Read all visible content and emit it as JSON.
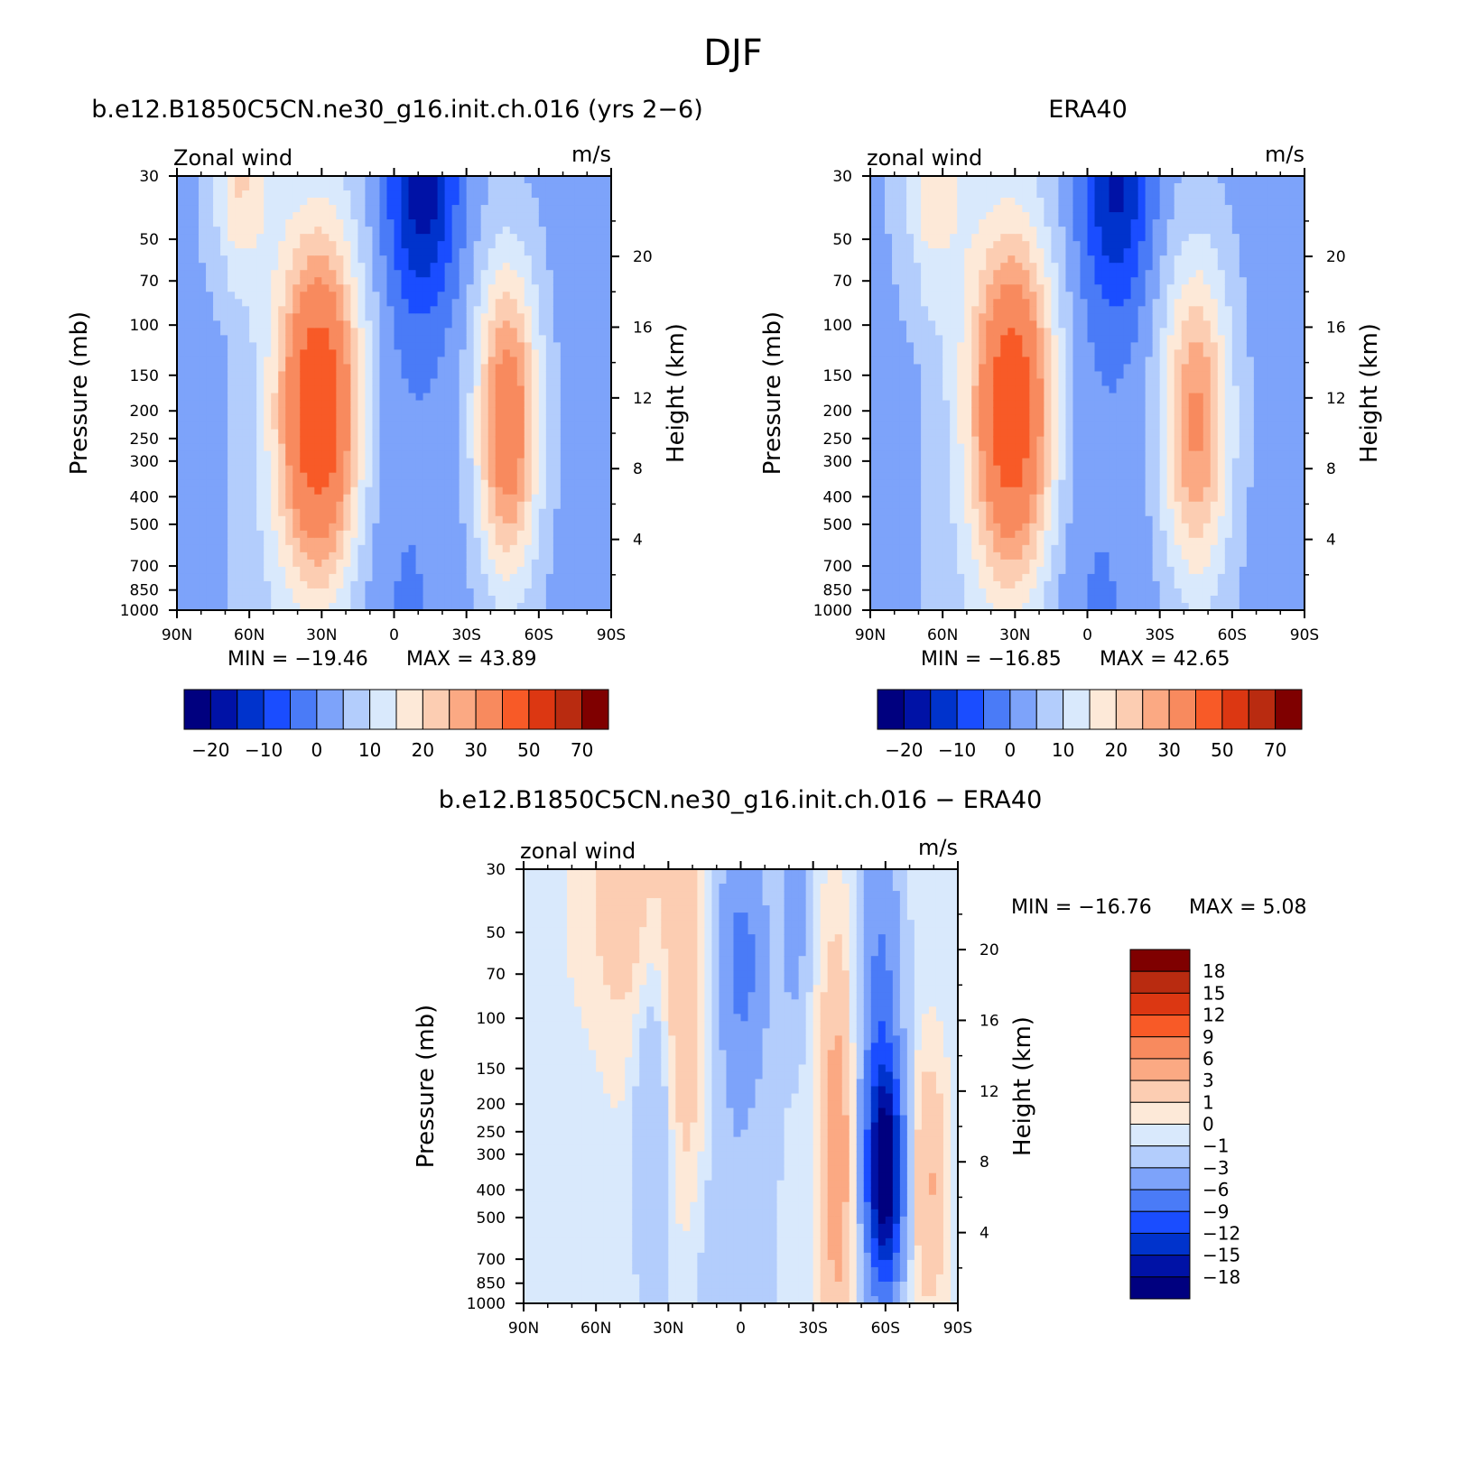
{
  "figure": {
    "title": "DJF"
  },
  "colors": {
    "diverging": [
      "#00007f",
      "#0012a6",
      "#0033cc",
      "#1a4dff",
      "#4a7bf7",
      "#7da3fa",
      "#b3cdfc",
      "#d9e9fc",
      "#fde9d8",
      "#fccdb2",
      "#fba983",
      "#f88a5e",
      "#f85a27",
      "#dc3712",
      "#b92b10",
      "#7f0000"
    ]
  },
  "chart_data": [
    {
      "type": "heatmap",
      "title": "b.e12.B1850C5CN.ne30_g16.init.ch.016 (yrs 2−6)",
      "left_label": "Zonal wind",
      "right_label": "m/s",
      "ylabel": "Pressure (mb)",
      "ylabel_right": "Height (km)",
      "x_ticks": [
        "90N",
        "60N",
        "30N",
        "0",
        "30S",
        "60S",
        "90S"
      ],
      "y_ticks": [
        "30",
        "50",
        "70",
        "100",
        "150",
        "200",
        "250",
        "300",
        "400",
        "500",
        "700",
        "850",
        "1000"
      ],
      "right_ticks": [
        "20",
        "16",
        "12",
        "8",
        "4"
      ],
      "min_label": "MIN = −19.46",
      "max_label": "MAX = 43.89",
      "min": -19.46,
      "max": 43.89,
      "colorbar_labels": [
        "−20",
        "−10",
        "0",
        "10",
        "20",
        "30",
        "50",
        "70"
      ],
      "levels": [
        -25,
        -20,
        -15,
        -10,
        -5,
        0,
        5,
        10,
        15,
        20,
        25,
        30,
        40,
        50,
        60,
        70
      ],
      "ylim": [
        1000,
        30
      ],
      "xlim": [
        90,
        -90
      ],
      "jets": [
        {
          "lat": 31,
          "p": 200,
          "peak": 43.89,
          "dlat": 12,
          "dlogp": 0.42
        },
        {
          "lat": -47,
          "p": 220,
          "peak": 34.0,
          "dlat": 9,
          "dlogp": 0.38
        },
        {
          "lat": 64,
          "p": 30,
          "peak": 14.0,
          "dlat": 9,
          "dlogp": 0.25
        }
      ],
      "easterly": {
        "lat": -12,
        "p": 30,
        "peak": -19.46
      }
    },
    {
      "type": "heatmap",
      "title": "ERA40",
      "left_label": "zonal wind",
      "right_label": "m/s",
      "ylabel": "Pressure (mb)",
      "ylabel_right": "Height (km)",
      "x_ticks": [
        "90N",
        "60N",
        "30N",
        "0",
        "30S",
        "60S",
        "90S"
      ],
      "y_ticks": [
        "30",
        "50",
        "70",
        "100",
        "150",
        "200",
        "250",
        "300",
        "400",
        "500",
        "700",
        "850",
        "1000"
      ],
      "right_ticks": [
        "20",
        "16",
        "12",
        "8",
        "4"
      ],
      "min_label": "MIN = −16.85",
      "max_label": "MAX = 42.65",
      "min": -16.85,
      "max": 42.65,
      "colorbar_labels": [
        "−20",
        "−10",
        "0",
        "10",
        "20",
        "30",
        "50",
        "70"
      ],
      "levels": [
        -25,
        -20,
        -15,
        -10,
        -5,
        0,
        5,
        10,
        15,
        20,
        25,
        30,
        40,
        50,
        60,
        70
      ],
      "ylim": [
        1000,
        30
      ],
      "xlim": [
        90,
        -90
      ],
      "jets": [
        {
          "lat": 31,
          "p": 200,
          "peak": 42.65,
          "dlat": 12,
          "dlogp": 0.42
        },
        {
          "lat": -45,
          "p": 220,
          "peak": 28.0,
          "dlat": 10,
          "dlogp": 0.4
        },
        {
          "lat": 64,
          "p": 30,
          "peak": 12.0,
          "dlat": 10,
          "dlogp": 0.3
        }
      ],
      "easterly": {
        "lat": -12,
        "p": 30,
        "peak": -16.85
      }
    },
    {
      "type": "heatmap",
      "title": "b.e12.B1850C5CN.ne30_g16.init.ch.016 − ERA40",
      "left_label": "zonal wind",
      "right_label": "m/s",
      "ylabel": "Pressure (mb)",
      "ylabel_right": "Height (km)",
      "x_ticks": [
        "90N",
        "60N",
        "30N",
        "0",
        "30S",
        "60S",
        "90S"
      ],
      "y_ticks": [
        "30",
        "50",
        "70",
        "100",
        "150",
        "200",
        "250",
        "300",
        "400",
        "500",
        "700",
        "850",
        "1000"
      ],
      "right_ticks": [
        "20",
        "16",
        "12",
        "8",
        "4"
      ],
      "min_label": "MIN = −16.76",
      "max_label": "MAX = 5.08",
      "min": -16.76,
      "max": 5.08,
      "colorbar_labels": [
        "18",
        "15",
        "12",
        "9",
        "6",
        "3",
        "1",
        "0",
        "−1",
        "−3",
        "−6",
        "−9",
        "−12",
        "−15",
        "−18"
      ],
      "levels": [
        -21,
        -18,
        -15,
        -12,
        -9,
        -6,
        -3,
        -1,
        0,
        1,
        3,
        6,
        9,
        12,
        15,
        18
      ],
      "ylim": [
        1000,
        30
      ],
      "xlim": [
        90,
        -90
      ],
      "anomalies": [
        {
          "lat": 24,
          "p": 120,
          "val": 3.5,
          "dlat": 14,
          "dlogp": 0.55
        },
        {
          "lat": 48,
          "p": 40,
          "val": 2.0,
          "dlat": 14,
          "dlogp": 0.3
        },
        {
          "lat": -40,
          "p": 300,
          "val": 5.08,
          "dlat": 5,
          "dlogp": 0.5
        },
        {
          "lat": -78,
          "p": 380,
          "val": 3.6,
          "dlat": 5,
          "dlogp": 0.3
        },
        {
          "lat": -60,
          "p": 350,
          "val": -16.76,
          "dlat": 5,
          "dlogp": 0.25
        },
        {
          "lat": -58,
          "p": 150,
          "val": -7.0,
          "dlat": 6,
          "dlogp": 0.7
        },
        {
          "lat": 36,
          "p": 200,
          "val": -4.5,
          "dlat": 6,
          "dlogp": 0.5
        },
        {
          "lat": 0,
          "p": 60,
          "val": -6.0,
          "dlat": 8,
          "dlogp": 0.3
        },
        {
          "lat": -22,
          "p": 40,
          "val": -4.5,
          "dlat": 4,
          "dlogp": 0.3
        },
        {
          "lat": 5,
          "p": 400,
          "val": -3.0,
          "dlat": 12,
          "dlogp": 0.7
        }
      ],
      "background": -0.4
    }
  ]
}
